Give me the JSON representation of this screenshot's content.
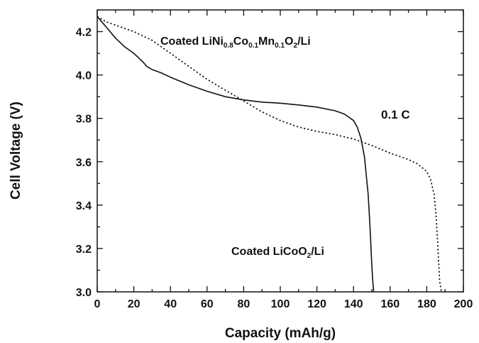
{
  "chart_data": {
    "type": "line",
    "title": "",
    "xlabel": "Capacity (mAh/g)",
    "ylabel": "Cell Voltage (V)",
    "xlim": [
      0,
      200
    ],
    "ylim": [
      3.0,
      4.3
    ],
    "x_ticks": [
      "0",
      "20",
      "40",
      "60",
      "80",
      "100",
      "120",
      "140",
      "160",
      "180",
      "200"
    ],
    "y_ticks": [
      "3.0",
      "3.2",
      "3.4",
      "3.6",
      "3.8",
      "4.0",
      "4.2"
    ],
    "grid": false,
    "legend": "none",
    "annotations": {
      "nmc": {
        "prefix": "Coated LiNi",
        "s1": "0.8",
        "t2": "Co",
        "s2": "0.1",
        "t3": "Mn",
        "s3": "0.1",
        "t4": "O",
        "s4": "2",
        "suffix": "/Li"
      },
      "lco": {
        "prefix": "Coated LiCoO",
        "sub": "2",
        "suffix": "/Li"
      },
      "rate": "0.1 C"
    },
    "series": [
      {
        "style": "solid",
        "x": [
          0,
          5,
          10,
          15,
          20,
          25,
          27,
          30,
          35,
          40,
          50,
          60,
          70,
          80,
          90,
          100,
          110,
          120,
          130,
          135,
          140,
          142,
          144,
          146,
          148,
          149,
          150,
          150.5,
          151
        ],
        "y": [
          4.27,
          4.22,
          4.17,
          4.13,
          4.1,
          4.06,
          4.04,
          4.025,
          4.01,
          3.99,
          3.955,
          3.925,
          3.9,
          3.885,
          3.875,
          3.87,
          3.862,
          3.852,
          3.835,
          3.82,
          3.79,
          3.76,
          3.71,
          3.62,
          3.45,
          3.3,
          3.12,
          3.05,
          3.0
        ]
      },
      {
        "style": "dotted",
        "x": [
          0,
          5,
          10,
          20,
          30,
          40,
          50,
          60,
          70,
          80,
          90,
          100,
          110,
          120,
          130,
          140,
          150,
          160,
          170,
          175,
          180,
          182,
          184,
          185,
          186,
          187,
          188
        ],
        "y": [
          4.27,
          4.245,
          4.23,
          4.2,
          4.16,
          4.1,
          4.04,
          3.98,
          3.93,
          3.88,
          3.83,
          3.79,
          3.76,
          3.74,
          3.725,
          3.705,
          3.675,
          3.64,
          3.61,
          3.59,
          3.555,
          3.52,
          3.45,
          3.36,
          3.22,
          3.05,
          3.0
        ]
      }
    ]
  }
}
